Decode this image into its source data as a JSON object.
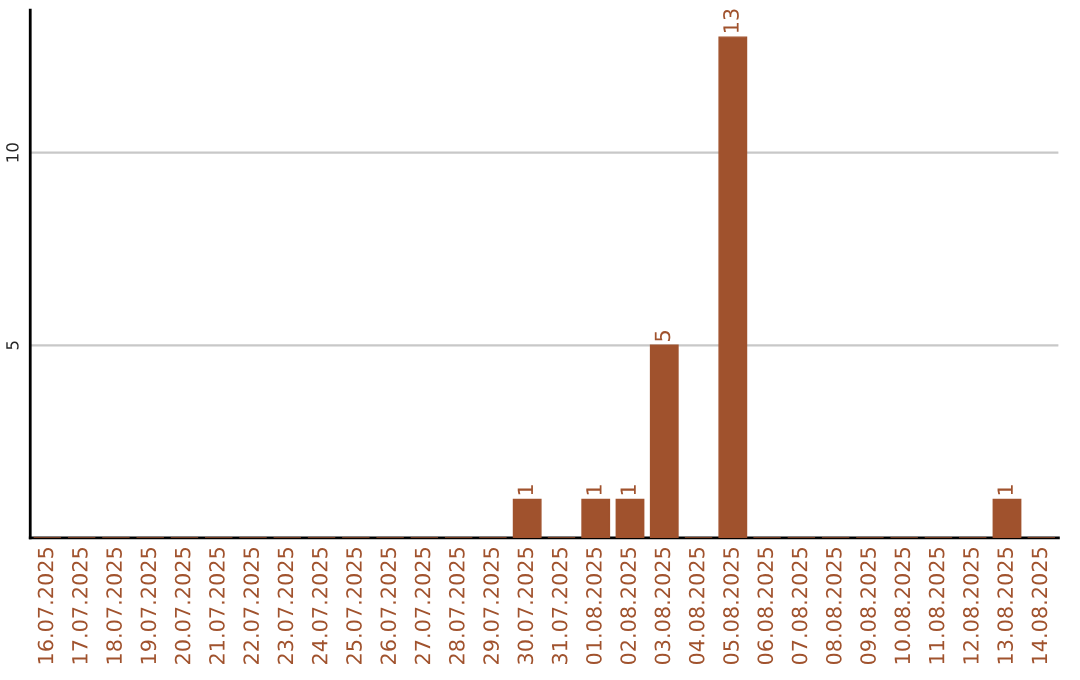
{
  "chart_data": {
    "type": "bar",
    "categories": [
      "16.07.2025",
      "17.07.2025",
      "18.07.2025",
      "19.07.2025",
      "20.07.2025",
      "21.07.2025",
      "22.07.2025",
      "23.07.2025",
      "24.07.2025",
      "25.07.2025",
      "26.07.2025",
      "27.07.2025",
      "28.07.2025",
      "29.07.2025",
      "30.07.2025",
      "31.07.2025",
      "01.08.2025",
      "02.08.2025",
      "03.08.2025",
      "04.08.2025",
      "05.08.2025",
      "06.08.2025",
      "07.08.2025",
      "08.08.2025",
      "09.08.2025",
      "10.08.2025",
      "11.08.2025",
      "12.08.2025",
      "13.08.2025",
      "14.08.2025"
    ],
    "values": [
      0,
      0,
      0,
      0,
      0,
      0,
      0,
      0,
      0,
      0,
      0,
      0,
      0,
      0,
      1,
      0,
      1,
      1,
      5,
      0,
      13,
      0,
      0,
      0,
      0,
      0,
      0,
      0,
      1,
      0
    ],
    "value_labels": [
      null,
      null,
      null,
      null,
      null,
      null,
      null,
      null,
      null,
      null,
      null,
      null,
      null,
      null,
      "1",
      null,
      "1",
      "1",
      "5",
      null,
      "13",
      null,
      null,
      null,
      null,
      null,
      null,
      null,
      "1",
      null
    ],
    "color": "#a0522d",
    "ylim": [
      0,
      13.7
    ],
    "yticks": [
      5,
      10
    ],
    "grid": "y",
    "legend": false
  }
}
